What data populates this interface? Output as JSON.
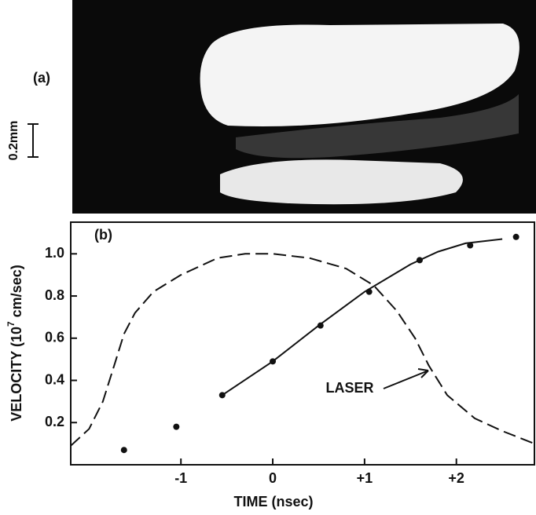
{
  "panel_a": {
    "label": "(a)",
    "scale_label": "0.2mm"
  },
  "chart_data": {
    "type": "line",
    "panel_label": "(b)",
    "xlabel": "TIME (nsec)",
    "ylabel": "VELOCITY (10",
    "ylabel_sup": "7",
    "ylabel_end": "cm/sec)",
    "xlim": [
      -2.2,
      2.85
    ],
    "ylim": [
      0,
      1.15
    ],
    "xticks": [
      -1,
      0,
      {
        "value": 1,
        "label": "+1"
      },
      {
        "value": 2,
        "label": "+2"
      }
    ],
    "yticks": [
      0.2,
      0.4,
      0.6,
      0.8,
      {
        "value": 1,
        "label": "1.0"
      }
    ],
    "annotation": "LASER",
    "series": [
      {
        "type": "line",
        "style": "dashed",
        "color": "#111111",
        "x": [
          -2.2,
          -2.0,
          -1.85,
          -1.72,
          -1.62,
          -1.5,
          -1.3,
          -1.0,
          -0.6,
          -0.3,
          0,
          0.4,
          0.8,
          1.1,
          1.35,
          1.55,
          1.7,
          1.9,
          2.2,
          2.5,
          2.85
        ],
        "values": [
          0.09,
          0.17,
          0.3,
          0.48,
          0.62,
          0.72,
          0.82,
          0.9,
          0.98,
          1.0,
          1.0,
          0.98,
          0.93,
          0.85,
          0.73,
          0.6,
          0.47,
          0.33,
          0.22,
          0.16,
          0.1
        ]
      },
      {
        "type": "line",
        "style": "solid",
        "color": "#111111",
        "x": [
          -0.55,
          0,
          0.5,
          1.0,
          1.5,
          1.8,
          2.1,
          2.5
        ],
        "values": [
          0.33,
          0.49,
          0.66,
          0.82,
          0.95,
          1.01,
          1.05,
          1.07
        ]
      },
      {
        "type": "scatter",
        "color": "#111111",
        "x": [
          -1.62,
          -1.05,
          -0.55,
          0,
          0.52,
          1.05,
          1.6,
          2.15,
          2.65
        ],
        "values": [
          0.07,
          0.18,
          0.33,
          0.49,
          0.66,
          0.82,
          0.97,
          1.04,
          1.08
        ]
      }
    ]
  }
}
